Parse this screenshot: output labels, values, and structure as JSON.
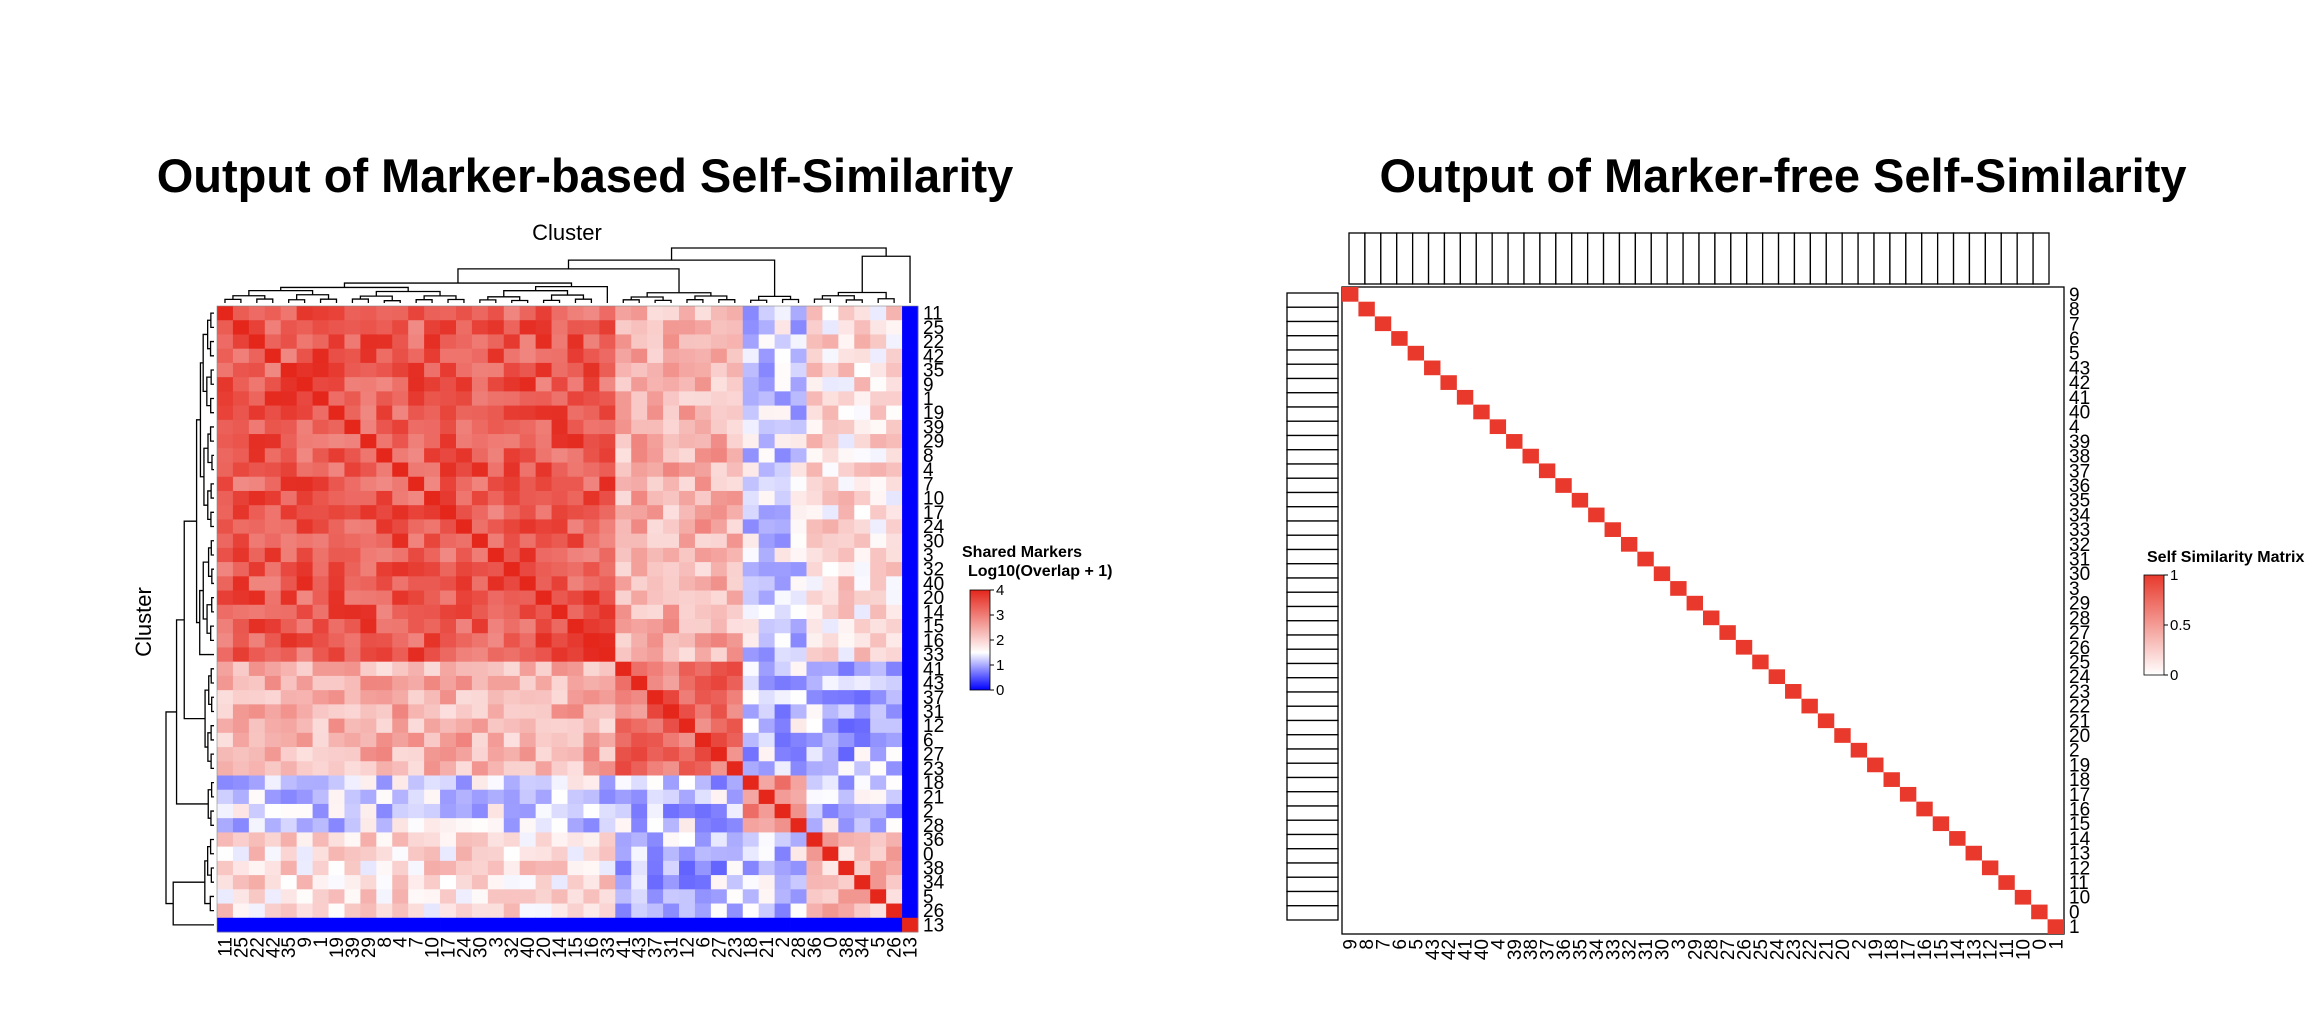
{
  "chart_data": [
    {
      "type": "heatmap",
      "title": "Output of Marker-based Self-Similarity",
      "xlabel": "Cluster",
      "ylabel": "Cluster",
      "order": [
        "11",
        "25",
        "22",
        "42",
        "35",
        "9",
        "1",
        "19",
        "39",
        "29",
        "8",
        "4",
        "7",
        "10",
        "17",
        "24",
        "30",
        "3",
        "32",
        "40",
        "20",
        "14",
        "15",
        "16",
        "33",
        "41",
        "43",
        "37",
        "31",
        "12",
        "6",
        "27",
        "23",
        "18",
        "21",
        "2",
        "28",
        "36",
        "0",
        "38",
        "34",
        "5",
        "26",
        "13"
      ],
      "group": [
        0,
        0,
        0,
        0,
        0,
        0,
        0,
        0,
        0,
        0,
        0,
        0,
        0,
        0,
        0,
        0,
        0,
        0,
        0,
        0,
        0,
        0,
        0,
        0,
        0,
        1,
        1,
        1,
        1,
        1,
        1,
        1,
        1,
        2,
        2,
        2,
        2,
        3,
        3,
        3,
        3,
        3,
        3,
        4
      ],
      "levels": [
        [
          3.4,
          2.4,
          1.3,
          1.9
        ],
        [
          2.4,
          3.1,
          1.2,
          1.1
        ],
        [
          1.3,
          1.2,
          3.0,
          1.3
        ],
        [
          1.9,
          1.1,
          1.3,
          2.2
        ]
      ],
      "self_value": 4,
      "outlier_cluster": "13",
      "outlier_value": 0,
      "legend": {
        "title_line1": "Shared Markers",
        "title_line2": "Log10(Overlap + 1)",
        "ticks": [
          "4",
          "3",
          "2",
          "1",
          "0"
        ],
        "range": [
          0,
          4
        ]
      },
      "colors": {
        "low": "#0000ff",
        "mid": "#ffffff",
        "high": "#e4261b"
      }
    },
    {
      "type": "heatmap",
      "title": "Output of Marker-free Self-Similarity",
      "order": [
        "9",
        "8",
        "7",
        "6",
        "5",
        "43",
        "42",
        "41",
        "40",
        "4",
        "39",
        "38",
        "37",
        "36",
        "35",
        "34",
        "33",
        "32",
        "31",
        "30",
        "3",
        "29",
        "28",
        "27",
        "26",
        "25",
        "24",
        "23",
        "22",
        "21",
        "20",
        "2",
        "19",
        "18",
        "17",
        "16",
        "15",
        "14",
        "13",
        "12",
        "11",
        "10",
        "0",
        "1"
      ],
      "diagonal_value": 1,
      "off_diagonal_value": 0,
      "legend": {
        "title": "Self Similarity Matrix",
        "ticks": [
          "1",
          "0.5",
          "0"
        ],
        "range": [
          0,
          1
        ]
      },
      "colors": {
        "low": "#ffffff",
        "high": "#e8392c"
      }
    }
  ]
}
